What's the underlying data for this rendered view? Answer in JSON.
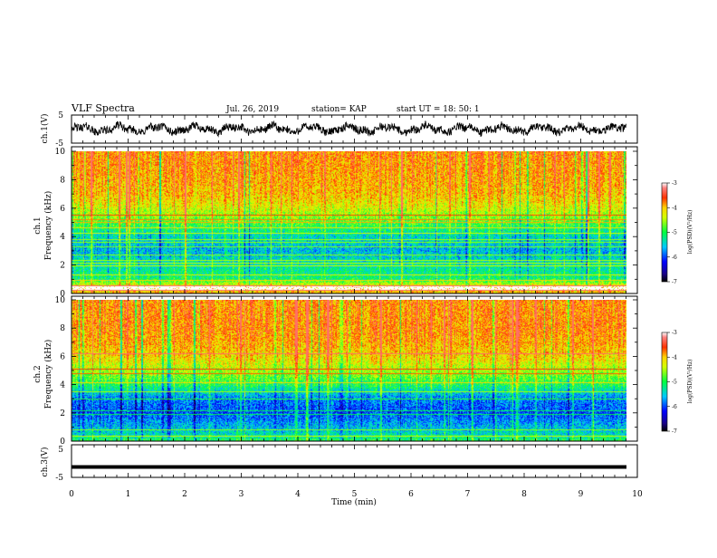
{
  "header": {
    "title": "VLF Spectra",
    "date": "Jul. 26, 2019",
    "station": "station= KAP",
    "start": "start  UT =   18: 50: 1"
  },
  "chart_data": [
    {
      "type": "line",
      "name": "ch1-voltage",
      "ylabel": "ch.1(V)",
      "ylim": [
        -5,
        5
      ],
      "ytick_labels": [
        "-5",
        "5"
      ],
      "xlim": [
        0,
        10
      ],
      "trace": {
        "mean": 0,
        "amplitude_approx": 1.8
      }
    },
    {
      "type": "heatmap",
      "name": "ch1-spectrogram",
      "ylabel_line1": "ch.1",
      "ylabel_line2": "Frequency (kHz)",
      "ylim": [
        0,
        10
      ],
      "ytick_labels": [
        "0",
        "2",
        "4",
        "6",
        "8",
        "10"
      ],
      "xlim": [
        0,
        9.8
      ],
      "colorbar": {
        "label": "log(PSD)(V²/Hz)",
        "range": [
          -7,
          -3
        ],
        "tick_labels": [
          "-3",
          "-4",
          "-5",
          "-6",
          "-7"
        ]
      },
      "level_profile": [
        {
          "f": 0.0,
          "v": -4.0
        },
        {
          "f": 0.5,
          "v": -4.2
        },
        {
          "f": 1.0,
          "v": -5.1
        },
        {
          "f": 2.0,
          "v": -5.3
        },
        {
          "f": 3.0,
          "v": -5.6
        },
        {
          "f": 4.0,
          "v": -5.4
        },
        {
          "f": 5.0,
          "v": -4.8
        },
        {
          "f": 6.0,
          "v": -4.3
        },
        {
          "f": 7.0,
          "v": -4.0
        },
        {
          "f": 8.0,
          "v": -3.9
        },
        {
          "f": 10.0,
          "v": -3.8
        }
      ],
      "line_frequencies_khz": [
        0.2,
        0.5,
        0.9,
        1.3,
        1.9,
        2.1,
        2.3,
        2.7,
        3.3,
        3.6,
        3.8,
        4.2,
        4.6,
        5.0,
        5.2,
        5.5
      ],
      "gap_band_khz": [
        0.2,
        0.5
      ]
    },
    {
      "type": "heatmap",
      "name": "ch2-spectrogram",
      "ylabel_line1": "ch.2",
      "ylabel_line2": "Frequency (kHz)",
      "ylim": [
        0,
        10
      ],
      "ytick_labels": [
        "0",
        "2",
        "4",
        "6",
        "8",
        "10"
      ],
      "xlim": [
        0,
        9.8
      ],
      "colorbar": {
        "label": "log(PSD)(V²/Hz)",
        "range": [
          -7,
          -3
        ],
        "tick_labels": [
          "-3",
          "-4",
          "-5",
          "-6",
          "-7"
        ]
      },
      "level_profile": [
        {
          "f": 0.0,
          "v": -5.0
        },
        {
          "f": 0.5,
          "v": -5.4
        },
        {
          "f": 1.0,
          "v": -5.6
        },
        {
          "f": 2.0,
          "v": -6.0
        },
        {
          "f": 3.0,
          "v": -5.8
        },
        {
          "f": 4.0,
          "v": -5.0
        },
        {
          "f": 5.0,
          "v": -4.5
        },
        {
          "f": 6.0,
          "v": -4.1
        },
        {
          "f": 7.0,
          "v": -3.9
        },
        {
          "f": 8.0,
          "v": -3.8
        },
        {
          "f": 10.0,
          "v": -3.8
        }
      ],
      "line_frequencies_khz": [
        0.3,
        0.8,
        1.9,
        2.1,
        3.0,
        3.5,
        4.1,
        4.8,
        5.1,
        6.2
      ],
      "gap_band_khz": []
    },
    {
      "type": "line",
      "name": "ch3-voltage",
      "ylabel": "ch.3(V)",
      "ylim": [
        -5,
        5
      ],
      "ytick_labels": [
        "-5",
        "5"
      ],
      "xlim": [
        0,
        10
      ],
      "xlabel": "Time (min)",
      "xtick_labels": [
        "0",
        "1",
        "2",
        "3",
        "4",
        "5",
        "6",
        "7",
        "8",
        "9",
        "10"
      ],
      "trace": {
        "constant_value": -1.8
      }
    }
  ]
}
